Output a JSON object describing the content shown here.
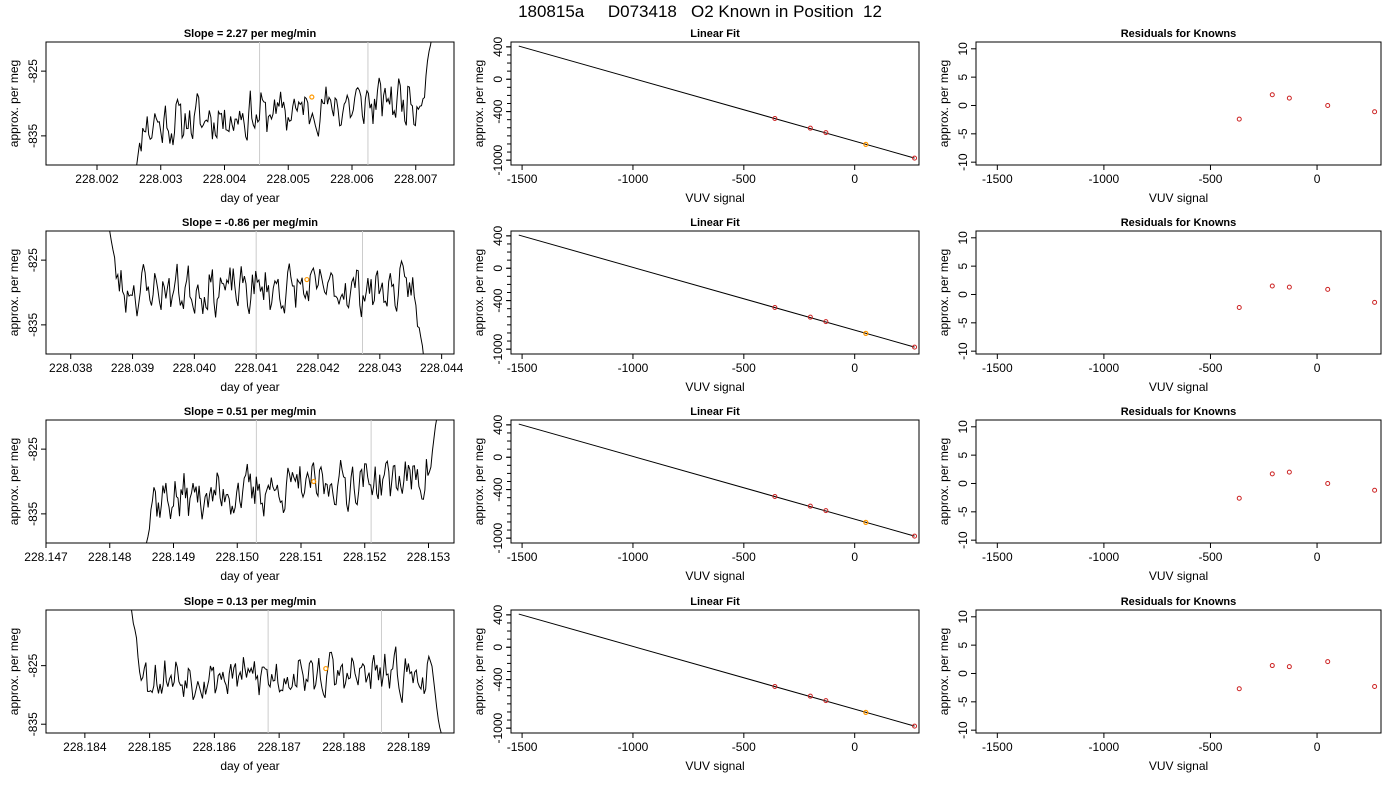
{
  "figure_title": "180815a     D073418   O2 Known in Position  12",
  "colors": {
    "line": "#000000",
    "marker": "#cc2222",
    "highlight": "#ff9900",
    "vline": "#cccccc"
  },
  "chart_data": [
    {
      "type": "line",
      "panel": "time-series",
      "row": 1,
      "title_prefix": "Slope = ",
      "slope": "2.27",
      "title_suffix": "  per meg/min",
      "xlabel": "day of year",
      "ylabel": "approx. per meg",
      "xlim": [
        228.0012,
        228.0076
      ],
      "ylim": [
        -839.5,
        -820.5
      ],
      "xticks": [
        "228.002",
        "228.003",
        "228.004",
        "228.005",
        "228.006",
        "228.007"
      ],
      "yticks": [
        "-825",
        "-835"
      ],
      "trace": {
        "x_start": 228.00255,
        "x_end": 228.00728,
        "n_points": 200,
        "start_y": -842,
        "end_y": -818,
        "mean_start": -833.5,
        "mean_end": -829.0,
        "seed": 11
      },
      "vlines": [
        228.00455,
        228.00625
      ],
      "highlight": {
        "x": 228.00537,
        "y": -829.0
      }
    },
    {
      "type": "scatter",
      "panel": "linear-fit",
      "row": 1,
      "title": "Linear Fit",
      "xlabel": "VUV signal",
      "ylabel": "approx. per meg",
      "xlim": [
        -1550,
        290
      ],
      "ylim": [
        -1060,
        460
      ],
      "xticks": [
        -1500,
        -1000,
        -500,
        0
      ],
      "yticks": [
        400,
        0,
        -400,
        -1000
      ],
      "points": [
        {
          "x": -360,
          "y": -485
        },
        {
          "x": -200,
          "y": -605
        },
        {
          "x": -130,
          "y": -660
        },
        {
          "x": 270,
          "y": -975
        }
      ],
      "highlight_point": {
        "x": 50,
        "y": -805
      },
      "fit_line": [
        {
          "x": -1515,
          "y": 410
        },
        {
          "x": 270,
          "y": -975
        }
      ]
    },
    {
      "type": "scatter",
      "panel": "residuals",
      "row": 1,
      "title": "Residuals for Knowns",
      "xlabel": "VUV signal",
      "ylabel": "approx. per meg",
      "xlim": [
        -1600,
        300
      ],
      "ylim": [
        -10.5,
        11.2
      ],
      "xticks": [
        -1500,
        -1000,
        -500,
        0
      ],
      "yticks": [
        10,
        5,
        0,
        -5,
        -10
      ],
      "points": [
        {
          "x": -365,
          "y": -2.4
        },
        {
          "x": -210,
          "y": 1.9
        },
        {
          "x": -130,
          "y": 1.3
        },
        {
          "x": 50,
          "y": 0.0
        },
        {
          "x": 270,
          "y": -1.1
        }
      ]
    },
    {
      "type": "line",
      "panel": "time-series",
      "row": 2,
      "title_prefix": "Slope = ",
      "slope": "-0.86",
      "title_suffix": "  per meg/min",
      "xlabel": "day of year",
      "ylabel": "approx. per meg",
      "xlim": [
        228.0376,
        228.0442
      ],
      "ylim": [
        -839.5,
        -820.5
      ],
      "xticks": [
        "228.038",
        "228.039",
        "228.040",
        "228.041",
        "228.042",
        "228.043",
        "228.044"
      ],
      "yticks": [
        "-825",
        "-835"
      ],
      "trace": {
        "x_start": 228.03858,
        "x_end": 228.04374,
        "n_points": 200,
        "start_y": -818,
        "end_y": -842,
        "mean_start": -829.5,
        "mean_end": -829.5,
        "seed": 23
      },
      "vlines": [
        228.041,
        228.04272
      ],
      "highlight": {
        "x": 228.04182,
        "y": -828.0
      }
    },
    {
      "type": "scatter",
      "panel": "linear-fit",
      "row": 2,
      "title": "Linear Fit",
      "xlabel": "VUV signal",
      "ylabel": "approx. per meg",
      "xlim": [
        -1550,
        290
      ],
      "ylim": [
        -1060,
        460
      ],
      "xticks": [
        -1500,
        -1000,
        -500,
        0
      ],
      "yticks": [
        400,
        0,
        -400,
        -1000
      ],
      "points": [
        {
          "x": -360,
          "y": -485
        },
        {
          "x": -200,
          "y": -605
        },
        {
          "x": -130,
          "y": -660
        },
        {
          "x": 270,
          "y": -975
        }
      ],
      "highlight_point": {
        "x": 50,
        "y": -805
      },
      "fit_line": [
        {
          "x": -1515,
          "y": 410
        },
        {
          "x": 270,
          "y": -975
        }
      ]
    },
    {
      "type": "scatter",
      "panel": "residuals",
      "row": 2,
      "title": "Residuals for Knowns",
      "xlabel": "VUV signal",
      "ylabel": "approx. per meg",
      "xlim": [
        -1600,
        300
      ],
      "ylim": [
        -10.5,
        11.2
      ],
      "xticks": [
        -1500,
        -1000,
        -500,
        0
      ],
      "yticks": [
        10,
        5,
        0,
        -5,
        -10
      ],
      "points": [
        {
          "x": -365,
          "y": -2.3
        },
        {
          "x": -210,
          "y": 1.5
        },
        {
          "x": -130,
          "y": 1.3
        },
        {
          "x": 50,
          "y": 0.9
        },
        {
          "x": 270,
          "y": -1.4
        }
      ]
    },
    {
      "type": "line",
      "panel": "time-series",
      "row": 3,
      "title_prefix": "Slope = ",
      "slope": "0.51",
      "title_suffix": "  per meg/min",
      "xlabel": "day of year",
      "ylabel": "approx. per meg",
      "xlim": [
        228.147,
        228.1534
      ],
      "ylim": [
        -839.5,
        -820.5
      ],
      "xticks": [
        "228.147",
        "228.148",
        "228.149",
        "228.150",
        "228.151",
        "228.152",
        "228.153"
      ],
      "yticks": [
        "-825",
        "-835"
      ],
      "trace": {
        "x_start": 228.14848,
        "x_end": 228.15318,
        "n_points": 200,
        "start_y": -842,
        "end_y": -818,
        "mean_start": -833.0,
        "mean_end": -829.0,
        "seed": 37
      },
      "vlines": [
        228.1503,
        228.1521
      ],
      "highlight": {
        "x": 228.1512,
        "y": -830.0
      }
    },
    {
      "type": "scatter",
      "panel": "linear-fit",
      "row": 3,
      "title": "Linear Fit",
      "xlabel": "VUV signal",
      "ylabel": "approx. per meg",
      "xlim": [
        -1550,
        290
      ],
      "ylim": [
        -1060,
        460
      ],
      "xticks": [
        -1500,
        -1000,
        -500,
        0
      ],
      "yticks": [
        400,
        0,
        -400,
        -1000
      ],
      "points": [
        {
          "x": -360,
          "y": -485
        },
        {
          "x": -200,
          "y": -605
        },
        {
          "x": -130,
          "y": -660
        },
        {
          "x": 270,
          "y": -975
        }
      ],
      "highlight_point": {
        "x": 50,
        "y": -805
      },
      "fit_line": [
        {
          "x": -1515,
          "y": 410
        },
        {
          "x": 270,
          "y": -975
        }
      ]
    },
    {
      "type": "scatter",
      "panel": "residuals",
      "row": 3,
      "title": "Residuals for Knowns",
      "xlabel": "VUV signal",
      "ylabel": "approx. per meg",
      "xlim": [
        -1600,
        300
      ],
      "ylim": [
        -10.5,
        11.2
      ],
      "xticks": [
        -1500,
        -1000,
        -500,
        0
      ],
      "yticks": [
        10,
        5,
        0,
        -5,
        -10
      ],
      "points": [
        {
          "x": -365,
          "y": -2.6
        },
        {
          "x": -210,
          "y": 1.7
        },
        {
          "x": -130,
          "y": 2.0
        },
        {
          "x": 50,
          "y": 0.0
        },
        {
          "x": 270,
          "y": -1.2
        }
      ]
    },
    {
      "type": "line",
      "panel": "time-series",
      "row": 4,
      "title_prefix": "Slope = ",
      "slope": "0.13",
      "title_suffix": "  per meg/min",
      "xlabel": "day of year",
      "ylabel": "approx. per meg",
      "xlim": [
        228.1834,
        228.1897
      ],
      "ylim": [
        -836.5,
        -815.5
      ],
      "xticks": [
        "228.184",
        "228.185",
        "228.186",
        "228.187",
        "228.188",
        "228.189"
      ],
      "yticks": [
        "-825",
        "-835"
      ],
      "trace": {
        "x_start": 228.1847,
        "x_end": 228.18953,
        "n_points": 200,
        "start_y": -814,
        "end_y": -838,
        "mean_start": -827.0,
        "mean_end": -826.5,
        "seed": 53
      },
      "vlines": [
        228.18683,
        228.18858
      ],
      "highlight": {
        "x": 228.18772,
        "y": -825.5
      }
    },
    {
      "type": "scatter",
      "panel": "linear-fit",
      "row": 4,
      "title": "Linear Fit",
      "xlabel": "VUV signal",
      "ylabel": "approx. per meg",
      "xlim": [
        -1550,
        290
      ],
      "ylim": [
        -1060,
        460
      ],
      "xticks": [
        -1500,
        -1000,
        -500,
        0
      ],
      "yticks": [
        400,
        0,
        -400,
        -1000
      ],
      "points": [
        {
          "x": -360,
          "y": -485
        },
        {
          "x": -200,
          "y": -605
        },
        {
          "x": -130,
          "y": -660
        },
        {
          "x": 270,
          "y": -975
        }
      ],
      "highlight_point": {
        "x": 50,
        "y": -805
      },
      "fit_line": [
        {
          "x": -1515,
          "y": 410
        },
        {
          "x": 270,
          "y": -975
        }
      ]
    },
    {
      "type": "scatter",
      "panel": "residuals",
      "row": 4,
      "title": "Residuals for Knowns",
      "xlabel": "VUV signal",
      "ylabel": "approx. per meg",
      "xlim": [
        -1600,
        300
      ],
      "ylim": [
        -10.5,
        11.2
      ],
      "xticks": [
        -1500,
        -1000,
        -500,
        0
      ],
      "yticks": [
        10,
        5,
        0,
        -5,
        -10
      ],
      "points": [
        {
          "x": -365,
          "y": -2.7
        },
        {
          "x": -210,
          "y": 1.4
        },
        {
          "x": -130,
          "y": 1.2
        },
        {
          "x": 50,
          "y": 2.1
        },
        {
          "x": 270,
          "y": -2.3
        }
      ]
    }
  ]
}
